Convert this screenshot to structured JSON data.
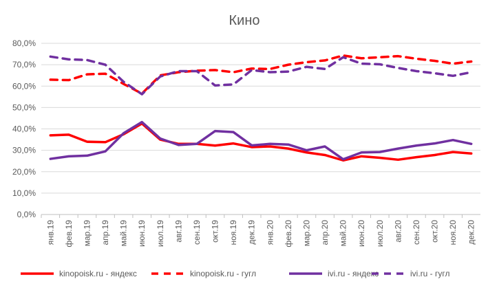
{
  "chart_data": {
    "type": "line",
    "title": "Кино",
    "xlabel": "",
    "ylabel": "",
    "ylim": [
      0,
      80
    ],
    "yticks": [
      "0,0%",
      "10,0%",
      "20,0%",
      "30,0%",
      "40,0%",
      "50,0%",
      "60,0%",
      "70,0%",
      "80,0%"
    ],
    "grid": true,
    "legend_position": "bottom",
    "categories": [
      "янв.19",
      "фев.19",
      "мар.19",
      "апр.19",
      "май.19",
      "июн.19",
      "июл.19",
      "авг.19",
      "сен.19",
      "окт.19",
      "ноя.19",
      "дек.19",
      "янв.20",
      "фев.20",
      "мар.20",
      "апр.20",
      "май.20",
      "июн.20",
      "июл.20",
      "авг.20",
      "сен.20",
      "окт.20",
      "ноя.20",
      "дек.20"
    ],
    "series": [
      {
        "name": "kinopoisk.ru - яндекс",
        "color": "#ff0000",
        "dash": false,
        "values": [
          37,
          37.3,
          34,
          33.8,
          37.5,
          42.5,
          35,
          33,
          33,
          32.2,
          33.2,
          31.5,
          31.8,
          30.8,
          29,
          27.8,
          25.3,
          27.2,
          26.5,
          25.6,
          26.8,
          27.8,
          29.2,
          28.5
        ]
      },
      {
        "name": "kinopoisk.ru - гугл",
        "color": "#ff0000",
        "dash": true,
        "values": [
          63,
          62.8,
          65.5,
          65.8,
          61,
          56.5,
          65,
          66.5,
          67.2,
          67.5,
          66.5,
          68.2,
          68,
          70,
          71.2,
          72,
          74.3,
          73,
          73.5,
          74,
          72.8,
          71.8,
          70.5,
          71.5
        ]
      },
      {
        "name": "ivi.ru - яндекс",
        "color": "#7030a0",
        "dash": false,
        "values": [
          26,
          27.2,
          27.5,
          29.5,
          38,
          43.2,
          35.5,
          32.5,
          33,
          39,
          38.5,
          32.3,
          33,
          32.7,
          30,
          31.8,
          25.8,
          29,
          29.2,
          30.8,
          32.2,
          33.2,
          34.8,
          33
        ]
      },
      {
        "name": "ivi.ru - гугл",
        "color": "#7030a0",
        "dash": true,
        "values": [
          73.8,
          72.5,
          72.2,
          70,
          62,
          56.2,
          64.5,
          67,
          67,
          60.3,
          60.8,
          67.5,
          66.5,
          66.8,
          69,
          68,
          73.5,
          70.5,
          70.2,
          68.5,
          67,
          66,
          64.8,
          66.5
        ]
      }
    ]
  }
}
